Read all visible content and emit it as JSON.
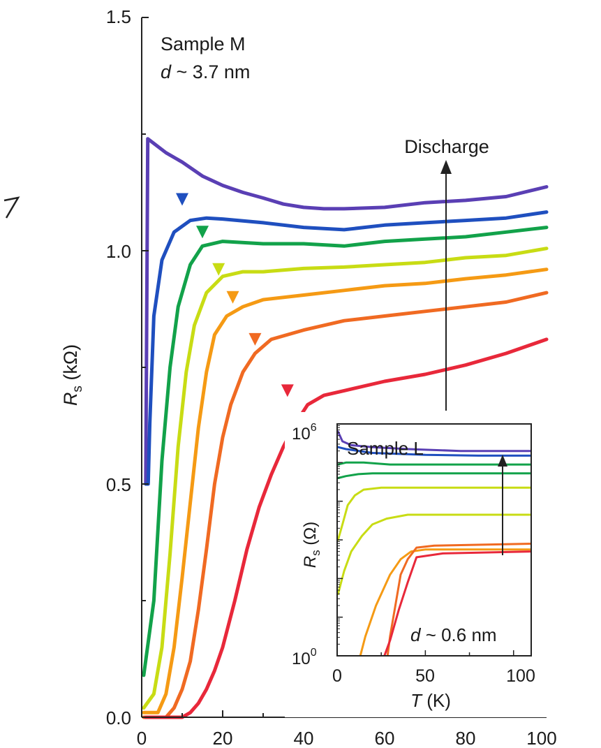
{
  "chart_data": [
    {
      "type": "line",
      "xlim": [
        0,
        100
      ],
      "ylim": [
        0,
        1.5
      ],
      "x_ticks": [
        "0",
        "20",
        "40",
        "60",
        "80",
        "100"
      ],
      "y_ticks": [
        "0.0",
        "0.5",
        "1.0",
        "1.5"
      ],
      "ylabel_main": "R",
      "ylabel_sub": "s",
      "ylabel_unit": " (kΩ)",
      "annotation_line1": "Sample M",
      "annotation_d": "d",
      "annotation_rest": " ~ 3.7 nm",
      "arrow_label": "Discharge",
      "grid": false,
      "series": [
        {
          "color": "#5a3fb4",
          "values": [
            [
              1,
              0.5
            ],
            [
              1.5,
              1.24
            ],
            [
              3,
              1.23
            ],
            [
              6,
              1.21
            ],
            [
              10,
              1.19
            ],
            [
              15,
              1.16
            ],
            [
              20,
              1.14
            ],
            [
              25,
              1.125
            ],
            [
              30,
              1.113
            ],
            [
              35,
              1.1
            ],
            [
              40,
              1.093
            ],
            [
              45,
              1.09
            ],
            [
              50,
              1.09
            ],
            [
              60,
              1.093
            ],
            [
              70,
              1.103
            ],
            [
              80,
              1.108
            ],
            [
              90,
              1.116
            ],
            [
              100,
              1.137
            ]
          ]
        },
        {
          "color": "#1f4fbf",
          "values": [
            [
              1,
              0.5
            ],
            [
              1.6,
              0.5
            ],
            [
              2,
              0.63
            ],
            [
              3,
              0.86
            ],
            [
              5,
              0.98
            ],
            [
              8,
              1.04
            ],
            [
              12,
              1.065
            ],
            [
              16,
              1.07
            ],
            [
              20,
              1.068
            ],
            [
              30,
              1.06
            ],
            [
              40,
              1.05
            ],
            [
              50,
              1.045
            ],
            [
              60,
              1.055
            ],
            [
              70,
              1.06
            ],
            [
              80,
              1.065
            ],
            [
              90,
              1.07
            ],
            [
              100,
              1.083
            ]
          ]
        },
        {
          "color": "#12a24a",
          "values": [
            [
              0.5,
              0.09
            ],
            [
              3,
              0.25
            ],
            [
              5,
              0.55
            ],
            [
              7,
              0.75
            ],
            [
              9,
              0.88
            ],
            [
              12,
              0.97
            ],
            [
              15,
              1.01
            ],
            [
              20,
              1.02
            ],
            [
              30,
              1.015
            ],
            [
              40,
              1.015
            ],
            [
              50,
              1.01
            ],
            [
              60,
              1.02
            ],
            [
              70,
              1.025
            ],
            [
              80,
              1.03
            ],
            [
              90,
              1.04
            ],
            [
              100,
              1.05
            ]
          ]
        },
        {
          "color": "#c8dc14",
          "values": [
            [
              0.5,
              0.02
            ],
            [
              3,
              0.05
            ],
            [
              5,
              0.15
            ],
            [
              7,
              0.35
            ],
            [
              9,
              0.58
            ],
            [
              11,
              0.74
            ],
            [
              13,
              0.84
            ],
            [
              16,
              0.91
            ],
            [
              20,
              0.945
            ],
            [
              25,
              0.955
            ],
            [
              30,
              0.955
            ],
            [
              40,
              0.962
            ],
            [
              50,
              0.965
            ],
            [
              60,
              0.97
            ],
            [
              70,
              0.975
            ],
            [
              80,
              0.985
            ],
            [
              90,
              0.99
            ],
            [
              100,
              1.005
            ]
          ]
        },
        {
          "color": "#f59a14",
          "values": [
            [
              0.5,
              0.01
            ],
            [
              4,
              0.01
            ],
            [
              6,
              0.05
            ],
            [
              8,
              0.15
            ],
            [
              10,
              0.3
            ],
            [
              12,
              0.46
            ],
            [
              14,
              0.62
            ],
            [
              16,
              0.74
            ],
            [
              18,
              0.82
            ],
            [
              21,
              0.86
            ],
            [
              25,
              0.88
            ],
            [
              30,
              0.895
            ],
            [
              40,
              0.905
            ],
            [
              50,
              0.915
            ],
            [
              60,
              0.925
            ],
            [
              70,
              0.93
            ],
            [
              80,
              0.94
            ],
            [
              90,
              0.948
            ],
            [
              100,
              0.96
            ]
          ]
        },
        {
          "color": "#f06a22",
          "values": [
            [
              0.5,
              0
            ],
            [
              6,
              0
            ],
            [
              8,
              0.02
            ],
            [
              10,
              0.06
            ],
            [
              12,
              0.12
            ],
            [
              14,
              0.23
            ],
            [
              16,
              0.36
            ],
            [
              18,
              0.5
            ],
            [
              20,
              0.6
            ],
            [
              22,
              0.67
            ],
            [
              25,
              0.74
            ],
            [
              28,
              0.78
            ],
            [
              32,
              0.81
            ],
            [
              40,
              0.83
            ],
            [
              50,
              0.85
            ],
            [
              60,
              0.86
            ],
            [
              70,
              0.87
            ],
            [
              80,
              0.88
            ],
            [
              90,
              0.89
            ],
            [
              100,
              0.91
            ]
          ]
        },
        {
          "color": "#e8283a",
          "values": [
            [
              1,
              0
            ],
            [
              10,
              0
            ],
            [
              12,
              0.01
            ],
            [
              14,
              0.03
            ],
            [
              16,
              0.06
            ],
            [
              18,
              0.1
            ],
            [
              20,
              0.15
            ],
            [
              23,
              0.25
            ],
            [
              26,
              0.36
            ],
            [
              29,
              0.45
            ],
            [
              32,
              0.52
            ],
            [
              35,
              0.58
            ],
            [
              38,
              0.63
            ],
            [
              41,
              0.67
            ],
            [
              45,
              0.69
            ],
            [
              50,
              0.7
            ],
            [
              60,
              0.72
            ],
            [
              70,
              0.735
            ],
            [
              80,
              0.755
            ],
            [
              90,
              0.78
            ],
            [
              100,
              0.81
            ]
          ]
        }
      ],
      "markers": [
        {
          "x": 10,
          "y": 1.11,
          "color": "#1f4fbf"
        },
        {
          "x": 15,
          "y": 1.04,
          "color": "#12a24a"
        },
        {
          "x": 19,
          "y": 0.96,
          "color": "#c8dc14"
        },
        {
          "x": 22.5,
          "y": 0.9,
          "color": "#f59a14"
        },
        {
          "x": 28,
          "y": 0.81,
          "color": "#f06a22"
        },
        {
          "x": 36,
          "y": 0.7,
          "color": "#e8283a"
        }
      ]
    },
    {
      "type": "line",
      "inset": true,
      "y_scale": "log",
      "xlim": [
        0,
        110
      ],
      "ylim_log10": [
        0,
        6
      ],
      "xlabel_var": "T",
      "xlabel_unit": " (K)",
      "x_ticks": [
        "0",
        "50",
        "100"
      ],
      "y_tick_base": "10",
      "y_tick_exp_bottom": "0",
      "y_tick_exp_top": "6",
      "ylabel_main": "R",
      "ylabel_sub": "s",
      "ylabel_unit": " (Ω)",
      "annotation_title": "Sample L",
      "annotation_d": "d",
      "annotation_rest": " ~ 0.6 nm",
      "series": [
        {
          "color": "#5a3fb4",
          "values": [
            [
              0.5,
              5.8
            ],
            [
              3,
              5.55
            ],
            [
              8,
              5.45
            ],
            [
              20,
              5.4
            ],
            [
              40,
              5.35
            ],
            [
              70,
              5.3
            ],
            [
              110,
              5.3
            ]
          ]
        },
        {
          "color": "#1f4fbf",
          "values": [
            [
              0.5,
              5.4
            ],
            [
              5,
              5.35
            ],
            [
              20,
              5.25
            ],
            [
              50,
              5.2
            ],
            [
              80,
              5.18
            ],
            [
              110,
              5.18
            ]
          ]
        },
        {
          "color": "#12a24a",
          "values": [
            [
              0.5,
              4.95
            ],
            [
              5,
              5.0
            ],
            [
              15,
              5.0
            ],
            [
              30,
              4.95
            ],
            [
              60,
              4.95
            ],
            [
              110,
              4.95
            ]
          ]
        },
        {
          "color": "#12a24a",
          "values": [
            [
              0.5,
              4.6
            ],
            [
              5,
              4.65
            ],
            [
              12,
              4.7
            ],
            [
              20,
              4.72
            ],
            [
              50,
              4.72
            ],
            [
              110,
              4.72
            ]
          ]
        },
        {
          "color": "#c8dc14",
          "values": [
            [
              0.5,
              3.0
            ],
            [
              3,
              3.4
            ],
            [
              6,
              3.9
            ],
            [
              10,
              4.15
            ],
            [
              15,
              4.3
            ],
            [
              25,
              4.35
            ],
            [
              50,
              4.35
            ],
            [
              110,
              4.35
            ]
          ]
        },
        {
          "color": "#c8dc14",
          "values": [
            [
              0.5,
              1.6
            ],
            [
              4,
              2.2
            ],
            [
              8,
              2.7
            ],
            [
              14,
              3.1
            ],
            [
              20,
              3.4
            ],
            [
              28,
              3.55
            ],
            [
              40,
              3.65
            ],
            [
              110,
              3.65
            ]
          ]
        },
        {
          "color": "#f59a14",
          "values": [
            [
              12,
              -0.2
            ],
            [
              16,
              0.5
            ],
            [
              22,
              1.3
            ],
            [
              30,
              2.1
            ],
            [
              36,
              2.5
            ],
            [
              42,
              2.7
            ],
            [
              50,
              2.75
            ],
            [
              110,
              2.75
            ]
          ]
        },
        {
          "color": "#f06a22",
          "values": [
            [
              28,
              -0.2
            ],
            [
              30,
              0.5
            ],
            [
              33,
              1.3
            ],
            [
              36,
              2.1
            ],
            [
              40,
              2.5
            ],
            [
              45,
              2.8
            ],
            [
              55,
              2.85
            ],
            [
              110,
              2.9
            ]
          ]
        },
        {
          "color": "#e8283a",
          "values": [
            [
              26,
              -0.1
            ],
            [
              30,
              0.4
            ],
            [
              35,
              1.2
            ],
            [
              40,
              1.9
            ],
            [
              45,
              2.55
            ],
            [
              60,
              2.65
            ],
            [
              110,
              2.7
            ]
          ]
        }
      ]
    }
  ]
}
